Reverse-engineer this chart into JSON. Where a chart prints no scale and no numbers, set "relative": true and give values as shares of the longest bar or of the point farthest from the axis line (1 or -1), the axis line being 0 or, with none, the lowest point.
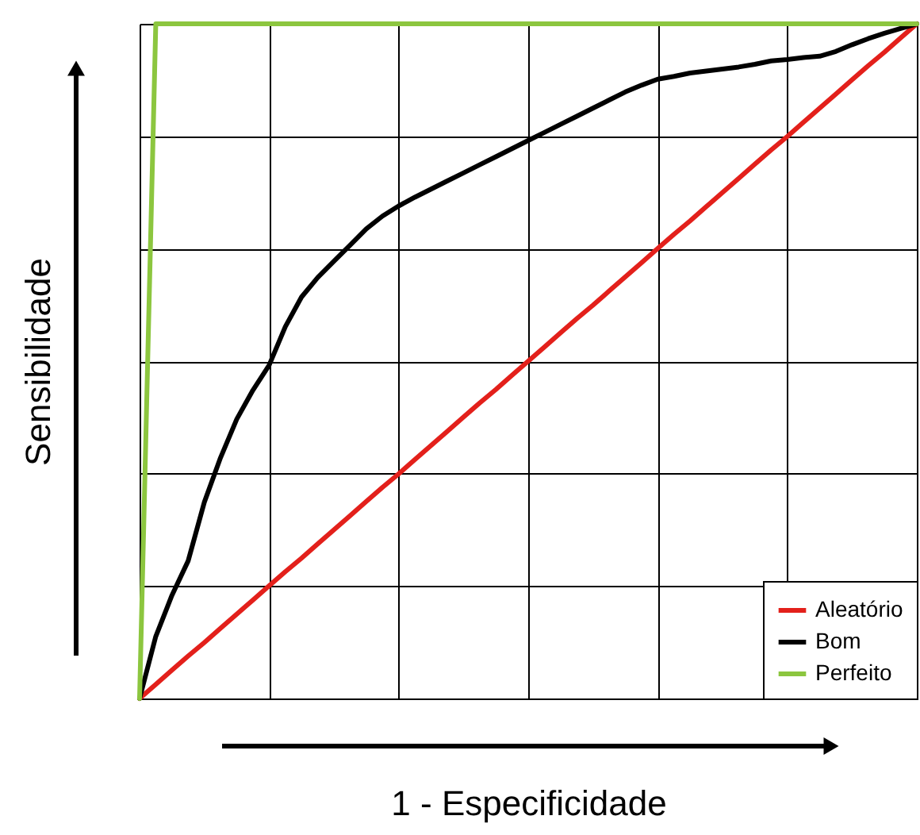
{
  "chart_data": {
    "type": "line",
    "relative": true,
    "xlabel": "1 - Especificidade",
    "ylabel": "Sensibilidade",
    "categories": [
      null,
      null,
      null,
      null,
      null,
      null,
      null,
      null,
      null,
      null,
      null,
      null,
      null,
      null,
      null,
      null,
      null,
      null,
      null,
      null,
      null,
      null,
      null,
      null,
      null,
      null,
      null,
      null,
      null,
      null,
      null,
      null,
      null,
      null,
      null,
      null,
      null,
      null,
      null,
      null,
      null,
      null,
      null,
      null,
      null,
      null,
      null,
      null,
      null
    ],
    "grid": true,
    "legend": "bottom right",
    "line_style": "solid",
    "marker": "none",
    "series": [
      {
        "name": "Aleatório",
        "color": "#e3201b",
        "values": [
          0,
          0.021,
          0.042,
          0.063,
          0.083,
          0.104,
          0.125,
          0.146,
          0.167,
          0.188,
          0.208,
          0.229,
          0.25,
          0.271,
          0.292,
          0.313,
          0.333,
          0.354,
          0.375,
          0.396,
          0.417,
          0.438,
          0.458,
          0.479,
          0.5,
          0.521,
          0.542,
          0.563,
          0.583,
          0.604,
          0.625,
          0.646,
          0.667,
          0.688,
          0.708,
          0.729,
          0.75,
          0.771,
          0.792,
          0.813,
          0.833,
          0.854,
          0.875,
          0.896,
          0.917,
          0.938,
          0.958,
          0.979,
          1
        ]
      },
      {
        "name": "Bom",
        "color": "#000000",
        "values": [
          0,
          0.092,
          0.153,
          0.204,
          0.291,
          0.357,
          0.414,
          0.457,
          0.494,
          0.551,
          0.595,
          0.624,
          0.648,
          0.672,
          0.696,
          0.715,
          0.73,
          0.743,
          0.755,
          0.767,
          0.779,
          0.791,
          0.803,
          0.815,
          0.827,
          0.839,
          0.851,
          0.863,
          0.875,
          0.887,
          0.899,
          0.909,
          0.918,
          0.922,
          0.927,
          0.93,
          0.933,
          0.936,
          0.94,
          0.945,
          0.947,
          0.95,
          0.952,
          0.959,
          0.969,
          0.978,
          0.986,
          0.993,
          1
        ]
      },
      {
        "name": "Perfeito",
        "color": "#8cc63f",
        "values": [
          0,
          1,
          1,
          1,
          1,
          1,
          1,
          1,
          1,
          1,
          1,
          1,
          1,
          1,
          1,
          1,
          1,
          1,
          1,
          1,
          1,
          1,
          1,
          1,
          1,
          1,
          1,
          1,
          1,
          1,
          1,
          1,
          1,
          1,
          1,
          1,
          1,
          1,
          1,
          1,
          1,
          1,
          1,
          1,
          1,
          1,
          1,
          1,
          1
        ]
      }
    ]
  }
}
